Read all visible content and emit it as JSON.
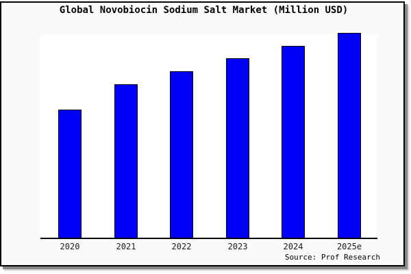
{
  "source_credit": "Source: Prof Research",
  "colors": {
    "card_background": "#fafafa",
    "plot_background": "#ffffff",
    "frame_border": "#000000",
    "bar_fill": "#0000f8",
    "bar_edge": "#000000",
    "title_text": "#000000",
    "tick_text": "#1a1a1a",
    "axis_line": "#000000"
  },
  "chart_data": {
    "type": "bar",
    "title": "Global Novobiocin Sodium Salt Market (Million USD)",
    "xlabel": "",
    "ylabel": "",
    "categories": [
      "2020",
      "2021",
      "2022",
      "2023",
      "2024",
      "2025e"
    ],
    "values_pct_of_max": [
      62.5,
      74.9,
      81.3,
      87.6,
      93.6,
      100
    ],
    "note": "No y-axis scale or value labels are shown in the image; values are relative bar heights normalized so 2025e = 100.",
    "bar_color": "#0000f8",
    "bar_edge_color": "#000000",
    "grid": false,
    "legend": false,
    "y_axis_visible": false
  }
}
